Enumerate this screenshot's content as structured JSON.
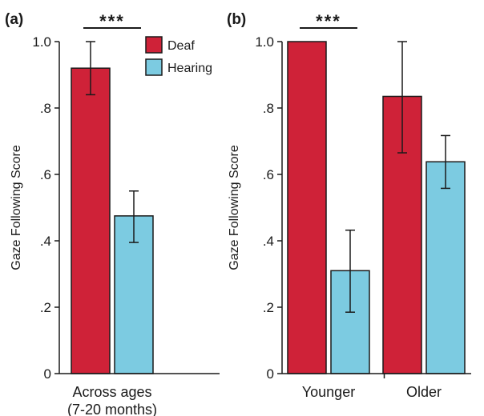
{
  "chart_data": [
    {
      "type": "bar",
      "panel_label": "(a)",
      "ylabel": "Gaze Following Score",
      "ylim": [
        0,
        1.0
      ],
      "yticks": [
        {
          "value": 0,
          "label": "0"
        },
        {
          "value": 0.2,
          "label": ".2"
        },
        {
          "value": 0.4,
          "label": ".4"
        },
        {
          "value": 0.6,
          "label": ".6"
        },
        {
          "value": 0.8,
          "label": ".8"
        },
        {
          "value": 1.0,
          "label": "1.0"
        }
      ],
      "categories": [
        "Across ages (7-20 months)"
      ],
      "category_lines": [
        [
          "Across ages",
          "(7-20 months)"
        ]
      ],
      "series": [
        {
          "name": "Deaf",
          "color": "#cf2238",
          "values": [
            0.92
          ],
          "err_low": [
            0.84
          ],
          "err_high": [
            1.0
          ]
        },
        {
          "name": "Hearing",
          "color": "#7ccbe1",
          "values": [
            0.475
          ],
          "err_low": [
            0.395
          ],
          "err_high": [
            0.55
          ]
        }
      ],
      "significance": [
        {
          "category_index": 0,
          "label": "***"
        }
      ],
      "legend": {
        "position": "top-right",
        "entries": [
          "Deaf",
          "Hearing"
        ]
      }
    },
    {
      "type": "bar",
      "panel_label": "(b)",
      "ylabel": "Gaze Following Score",
      "ylim": [
        0,
        1.0
      ],
      "yticks": [
        {
          "value": 0,
          "label": "0"
        },
        {
          "value": 0.2,
          "label": ".2"
        },
        {
          "value": 0.4,
          "label": ".4"
        },
        {
          "value": 0.6,
          "label": ".6"
        },
        {
          "value": 0.8,
          "label": ".8"
        },
        {
          "value": 1.0,
          "label": "1.0"
        }
      ],
      "categories": [
        "Younger",
        "Older"
      ],
      "category_lines": [
        [
          "Younger"
        ],
        [
          "Older"
        ]
      ],
      "series": [
        {
          "name": "Deaf",
          "color": "#cf2238",
          "values": [
            1.0,
            0.835
          ],
          "err_low": [
            null,
            0.665
          ],
          "err_high": [
            null,
            1.0
          ]
        },
        {
          "name": "Hearing",
          "color": "#7ccbe1",
          "values": [
            0.31,
            0.638
          ],
          "err_low": [
            0.185,
            0.558
          ],
          "err_high": [
            0.432,
            0.717
          ]
        }
      ],
      "significance": [
        {
          "category_index": 0,
          "label": "***"
        }
      ]
    }
  ]
}
